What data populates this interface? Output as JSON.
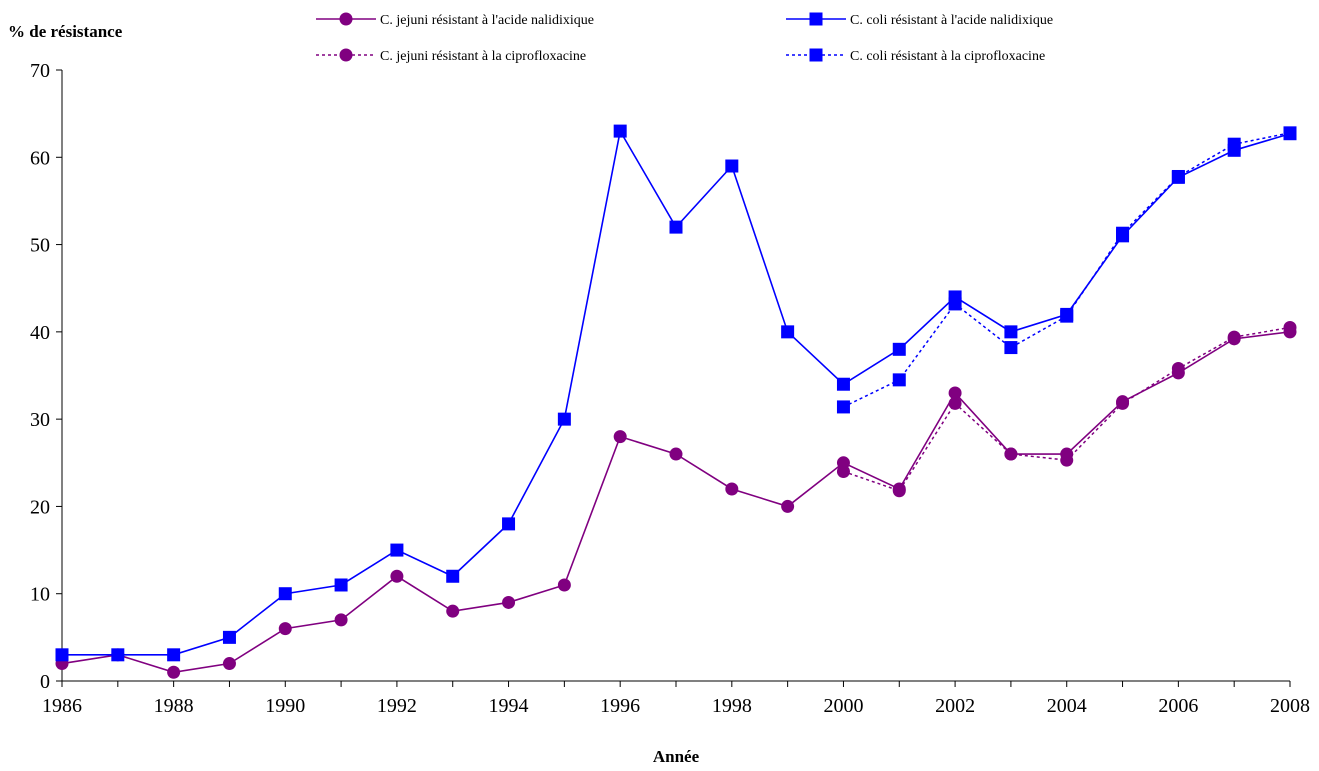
{
  "chart_data": {
    "type": "line",
    "title": "",
    "xlabel": "Année",
    "ylabel": "% de résistance",
    "xlim": [
      1986,
      2008
    ],
    "ylim": [
      0,
      70
    ],
    "yticks": [
      0,
      10,
      20,
      30,
      40,
      50,
      60,
      70
    ],
    "xticks": [
      1986,
      1988,
      1990,
      1992,
      1994,
      1996,
      1998,
      2000,
      2002,
      2004,
      2006,
      2008
    ],
    "grid": false,
    "legend_position": "top",
    "series": [
      {
        "name": "C. jejuni résistant à l'acide nalidixique",
        "color": "#800080",
        "line_style": "solid",
        "marker": "circle",
        "x": [
          1986,
          1987,
          1988,
          1989,
          1990,
          1991,
          1992,
          1993,
          1994,
          1995,
          1996,
          1997,
          1998,
          1999,
          2000,
          2001,
          2002,
          2003,
          2004,
          2005,
          2006,
          2007,
          2008
        ],
        "values": [
          2,
          3,
          1,
          2,
          6,
          7,
          12,
          8,
          9,
          11,
          28,
          26,
          22,
          20,
          25,
          22,
          33,
          26,
          26,
          32,
          35.3,
          39.2,
          40
        ]
      },
      {
        "name": "C. coli résistant à l'acide nalidixique",
        "color": "#0000ff",
        "line_style": "solid",
        "marker": "square",
        "x": [
          1986,
          1987,
          1988,
          1989,
          1990,
          1991,
          1992,
          1993,
          1994,
          1995,
          1996,
          1997,
          1998,
          1999,
          2000,
          2001,
          2002,
          2003,
          2004,
          2005,
          2006,
          2007,
          2008
        ],
        "values": [
          3,
          3,
          3,
          5,
          10,
          11,
          15,
          12,
          18,
          30,
          63,
          52,
          59,
          40,
          34,
          38,
          44,
          40,
          42,
          51,
          57.7,
          60.8,
          62.7
        ]
      },
      {
        "name": "C. jejuni résistant à la ciprofloxacine",
        "color": "#800080",
        "line_style": "dotted",
        "marker": "circle",
        "x": [
          2000,
          2001,
          2002,
          2003,
          2004,
          2005,
          2006,
          2007,
          2008
        ],
        "values": [
          24,
          21.8,
          31.8,
          26,
          25.3,
          31.8,
          35.8,
          39.4,
          40.5
        ]
      },
      {
        "name": "C. coli résistant à la ciprofloxacine",
        "color": "#0000ff",
        "line_style": "dotted",
        "marker": "square",
        "x": [
          2000,
          2001,
          2002,
          2003,
          2004,
          2005,
          2006,
          2007,
          2008
        ],
        "values": [
          31.4,
          34.5,
          43.2,
          38.2,
          41.8,
          51.3,
          57.8,
          61.5,
          62.8
        ]
      }
    ]
  }
}
